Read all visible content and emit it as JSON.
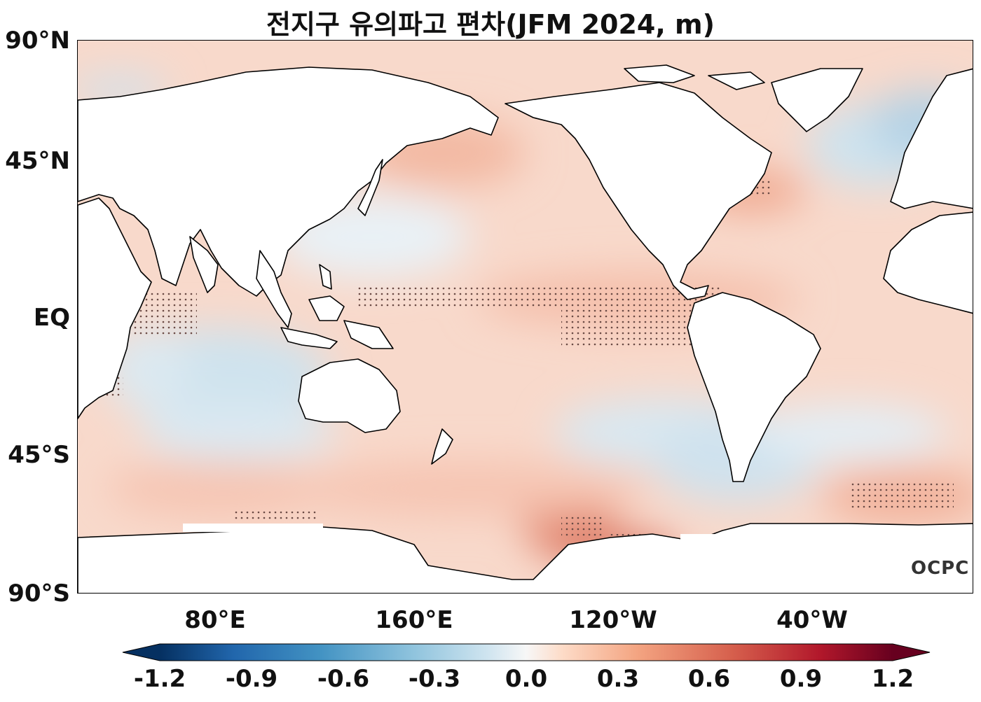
{
  "title": "전지구 유의파고 편차(JFM 2024, m)",
  "map": {
    "type": "global anomaly map",
    "projection": "PlateCarree, centred 160°W",
    "lat_labels": [
      "90°N",
      "45°N",
      "EQ",
      "45°S",
      "90°S"
    ],
    "lon_labels": [
      "80°E",
      "160°E",
      "120°W",
      "40°W"
    ],
    "colormap": "RdBu_r",
    "stippling": "significant anomalies marked with dots"
  },
  "colorbar": {
    "ticks": [
      "-1.2",
      "-0.9",
      "-0.6",
      "-0.3",
      "0.0",
      "0.3",
      "0.6",
      "0.9",
      "1.2"
    ],
    "min": -1.2,
    "max": 1.2,
    "extend": "both",
    "colors": [
      "#053061",
      "#2166ac",
      "#4393c3",
      "#92c5de",
      "#d1e5f0",
      "#f7f7f7",
      "#fddbc7",
      "#f4a582",
      "#d6604d",
      "#b2182b",
      "#67001f"
    ]
  },
  "logo": "OCPC"
}
